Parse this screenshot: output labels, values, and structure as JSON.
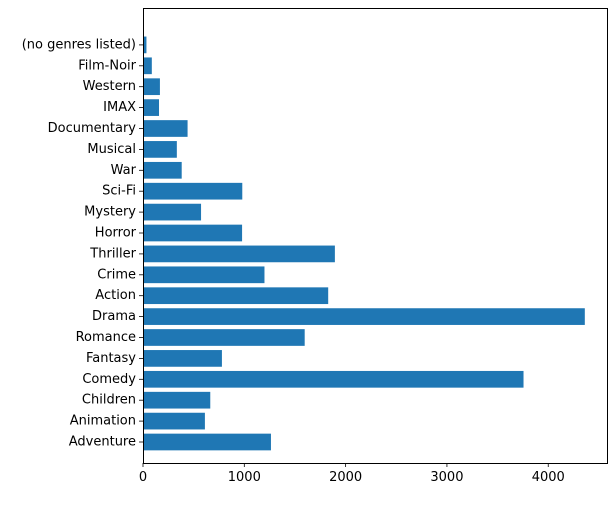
{
  "chart_data": {
    "type": "bar",
    "orientation": "horizontal",
    "title": "",
    "xlabel": "",
    "ylabel": "",
    "bar_color": "#1f77b4",
    "xlim": [
      0,
      4580
    ],
    "x_ticks": [
      0,
      1000,
      2000,
      3000,
      4000
    ],
    "grid": false,
    "categories": [
      "Adventure",
      "Animation",
      "Children",
      "Comedy",
      "Fantasy",
      "Romance",
      "Drama",
      "Action",
      "Crime",
      "Thriller",
      "Horror",
      "Mystery",
      "Sci-Fi",
      "War",
      "Musical",
      "Documentary",
      "IMAX",
      "Western",
      "Film-Noir",
      "(no genres listed)"
    ],
    "values": [
      1263,
      611,
      664,
      3756,
      779,
      1596,
      4361,
      1828,
      1199,
      1894,
      978,
      573,
      980,
      382,
      334,
      440,
      158,
      167,
      87,
      34
    ]
  }
}
